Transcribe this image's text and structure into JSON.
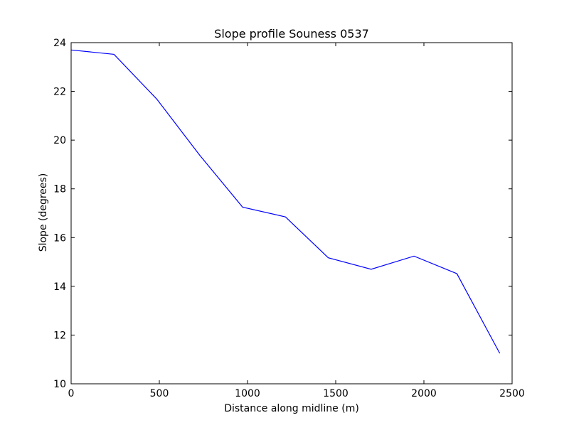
{
  "chart_data": {
    "type": "line",
    "title": "Slope profile Souness 0537",
    "xlabel": "Distance along midline (m)",
    "ylabel": "Slope (degrees)",
    "xlim": [
      0,
      2500
    ],
    "ylim": [
      10,
      24
    ],
    "xticks": [
      0,
      500,
      1000,
      1500,
      2000,
      2500
    ],
    "yticks": [
      10,
      12,
      14,
      16,
      18,
      20,
      22,
      24
    ],
    "grid": false,
    "series": [
      {
        "color": "#0000ff",
        "x": [
          0,
          243,
          486,
          729,
          972,
          1215,
          1458,
          1701,
          1944,
          2187,
          2430
        ],
        "y": [
          23.7,
          23.52,
          21.68,
          19.38,
          17.25,
          16.85,
          15.17,
          14.7,
          15.24,
          14.52,
          11.25
        ]
      }
    ]
  }
}
